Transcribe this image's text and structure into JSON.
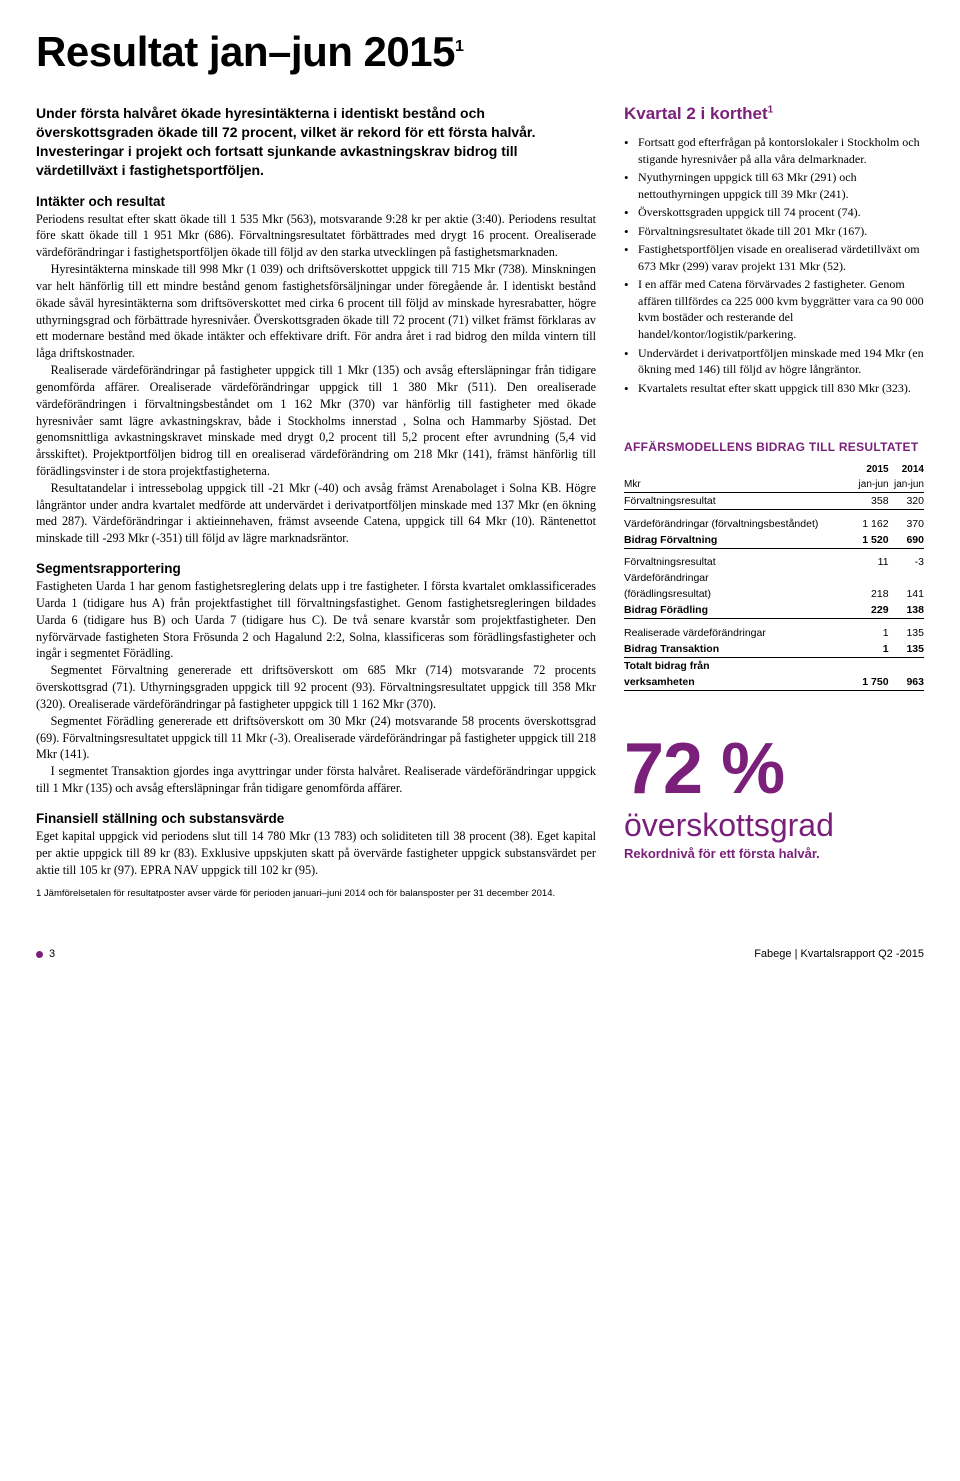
{
  "colors": {
    "accent": "#7a1f7a",
    "text": "#000000",
    "background": "#ffffff",
    "rule": "#000000"
  },
  "title": "Resultat jan–jun 2015",
  "title_sup": "1",
  "lead": "Under första halvåret ökade hyresintäkterna i identiskt bestånd och överskottsgraden ökade till 72 procent, vilket är rekord för ett första halvår. Investeringar i projekt och fortsatt sjunkande avkastningskrav bidrog till värdetillväxt i fastighetsportföljen.",
  "left": {
    "h1": "Intäkter och resultat",
    "p1": "Periodens resultat efter skatt ökade till 1 535 Mkr (563), motsvarande 9:28 kr per aktie (3:40). Periodens resultat före skatt ökade till 1 951 Mkr (686). Förvaltningsresultatet förbättrades med drygt 16 procent. Orealiserade värdeförändringar i fastighetsportföljen ökade till följd av den starka utvecklingen på fastighetsmarknaden.",
    "p2": "Hyresintäkterna minskade till 998 Mkr (1 039) och driftsöverskottet uppgick till 715 Mkr (738). Minskningen var helt hänförlig till ett mindre bestånd genom fastighetsförsäljningar under föregående år. I identiskt bestånd ökade såväl hyresintäkterna som driftsöverskottet med cirka 6 procent till följd av minskade hyresrabatter, högre uthyrningsgrad och förbättrade hyresnivåer. Överskottsgraden ökade till 72 procent (71) vilket främst förklaras av ett modernare bestånd med ökade intäkter och effektivare drift. För andra året i rad bidrog den milda vintern till låga driftskostnader.",
    "p3": "Realiserade värdeförändringar på fastigheter uppgick till 1 Mkr (135) och avsåg eftersläpningar från tidigare genomförda affärer. Orealiserade värdeförändringar uppgick till 1 380 Mkr (511). Den orealiserade värdeförändringen i förvaltningsbeståndet om 1 162 Mkr (370) var hänförlig till fastigheter med ökade hyresnivåer samt lägre avkastningskrav, både i Stockholms innerstad , Solna och Hammarby Sjöstad. Det genomsnittliga avkastningskravet minskade med drygt 0,2 procent till 5,2 procent efter avrundning (5,4 vid årsskiftet). Projektportföljen bidrog till en orealiserad värdeförändring om 218 Mkr (141), främst hänförlig till förädlingsvinster i de stora projektfastigheterna.",
    "p4": "Resultatandelar i intressebolag uppgick till -21 Mkr (-40) och avsåg främst Arenabolaget i Solna KB. Högre långräntor under andra kvartalet medförde att undervärdet i derivatportföljen minskade med 137 Mkr (en ökning med 287). Värdeförändringar i aktieinnehaven, främst avseende Catena, uppgick till 64 Mkr (10). Räntenettot minskade till -293 Mkr (-351) till följd av lägre marknadsräntor.",
    "h2": "Segmentsrapportering",
    "p5": "Fastigheten Uarda 1 har genom fastighetsreglering delats upp i tre fastigheter. I första kvartalet omklassificerades Uarda 1 (tidigare hus A) från projektfastighet till förvaltningsfastighet. Genom fastighetsregleringen bildades Uarda 6 (tidigare hus B) och Uarda 7 (tidigare hus C). De två senare kvarstår som projektfastigheter. Den nyförvärvade fastigheten Stora Frösunda 2 och Hagalund 2:2, Solna, klassificeras som förädlingsfastigheter och ingår i segmentet Förädling.",
    "p6": "Segmentet Förvaltning genererade ett driftsöverskott om 685 Mkr (714) motsvarande 72 procents överskottsgrad (71). Uthyrningsgraden uppgick till 92 procent (93). Förvaltningsresultatet uppgick till 358 Mkr (320). Orealiserade värdeförändringar på fastigheter uppgick till 1 162 Mkr (370).",
    "p7": "Segmentet Förädling genererade ett driftsöverskott om 30 Mkr (24) motsvarande 58 procents överskottsgrad (69). Förvaltningsresultatet uppgick till 11 Mkr (-3). Orealiserade värdeförändringar på fastigheter uppgick till 218 Mkr (141).",
    "p8": "I segmentet Transaktion gjordes inga avyttringar under första halvåret. Realiserade värdeförändringar uppgick till 1 Mkr (135) och avsåg eftersläpningar från tidigare genomförda affärer.",
    "h3": "Finansiell ställning och substansvärde",
    "p9": "Eget kapital uppgick vid periodens slut till 14 780 Mkr (13 783) och soliditeten till 38 procent (38). Eget kapital per aktie uppgick till 89 kr (83). Exklusive uppskjuten skatt på övervärde fastigheter uppgick substansvärdet per aktie till 105 kr (97). EPRA NAV uppgick till 102 kr (95)."
  },
  "footnote": "1 Jämförelsetalen för resultatposter avser värde för perioden januari–juni 2014 och för balansposter per 31 december 2014.",
  "right": {
    "box_title": "Kvartal 2 i korthet",
    "box_title_sup": "1",
    "bullets": [
      "Fortsatt god efterfrågan på kontorslokaler i Stockholm och stigande hyresnivåer på alla våra delmarknader.",
      "Nyuthyrningen uppgick till 63 Mkr (291) och nettouthyrningen uppgick till 39 Mkr (241).",
      "Överskottsgraden uppgick till 74 procent (74).",
      "Förvaltningsresultatet ökade till 201 Mkr (167).",
      "Fastighetsportföljen visade en orealiserad värdetillväxt om 673 Mkr (299) varav projekt 131 Mkr (52).",
      "I en affär med Catena förvärvades 2 fastigheter. Genom affären tillfördes ca 225 000 kvm byggrätter vara ca 90 000 kvm bostäder och resterande del handel/kontor/logistik/parkering.",
      "Undervärdet i derivatportföljen minskade med 194 Mkr (en ökning med 146) till följd av högre långräntor.",
      "Kvartalets resultat efter skatt uppgick till 830 Mkr (323)."
    ],
    "table_title": "AFFÄRSMODELLENS BIDRAG TILL RESULTATET",
    "table": {
      "col_label": "Mkr",
      "col_2015": "2015",
      "col_2014": "2014",
      "col_period": "jan-jun",
      "rows": [
        {
          "label": "Förvaltningsresultat",
          "a": "358",
          "b": "320",
          "underline": true
        },
        {
          "spacer": true
        },
        {
          "label": "Värdeförändringar (förvaltningsbeståndet)",
          "a": "1 162",
          "b": "370"
        },
        {
          "label": "Bidrag Förvaltning",
          "a": "1 520",
          "b": "690",
          "bold": true,
          "underline": true
        },
        {
          "spacer": true
        },
        {
          "label": "Förvaltningsresultat",
          "a": "11",
          "b": "-3"
        },
        {
          "label": "Värdeförändringar",
          "a": "",
          "b": ""
        },
        {
          "label": "(förädlingsresultat)",
          "a": "218",
          "b": "141"
        },
        {
          "label": "Bidrag Förädling",
          "a": "229",
          "b": "138",
          "bold": true,
          "underline": true
        },
        {
          "spacer": true
        },
        {
          "label": "Realiserade värdeförändringar",
          "a": "1",
          "b": "135"
        },
        {
          "label": "Bidrag Transaktion",
          "a": "1",
          "b": "135",
          "bold": true,
          "underline": true
        },
        {
          "label": "Totalt bidrag från",
          "a": "",
          "b": "",
          "bold": true
        },
        {
          "label": "verksamheten",
          "a": "1 750",
          "b": "963",
          "bold": true,
          "underline": true
        }
      ]
    },
    "big_number": "72 %",
    "big_word": "överskottsgrad",
    "big_sub": "Rekordnivå för ett första halvår."
  },
  "footer": {
    "page": "3",
    "source": "Fabege | Kvartalsrapport Q2 -2015"
  }
}
